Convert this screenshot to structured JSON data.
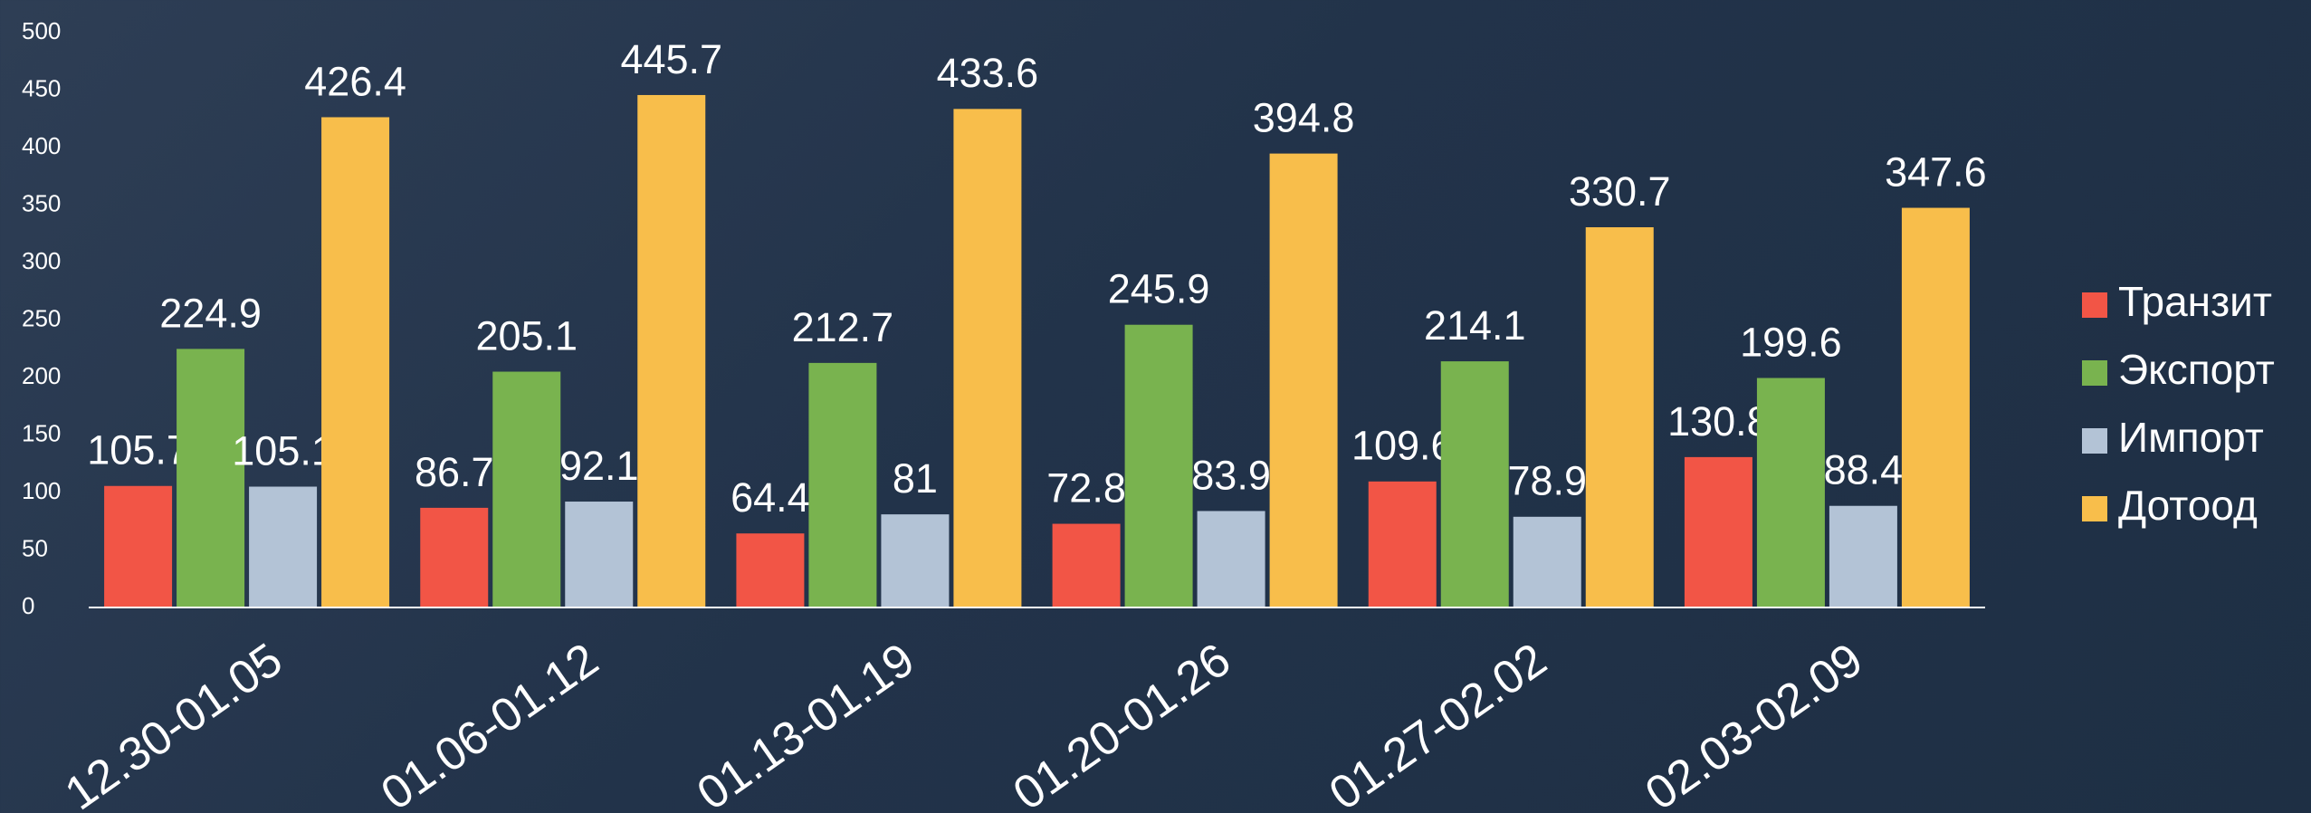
{
  "chart_data": {
    "type": "bar",
    "categories": [
      "12.30-01.05",
      "01.06-01.12",
      "01.13-01.19",
      "01.20-01.26",
      "01.27-02.02",
      "02.03-02.09"
    ],
    "series": [
      {
        "name": "Транзит",
        "color": "#f25546",
        "values": [
          105.7,
          86.7,
          64.4,
          72.8,
          109.6,
          130.8
        ]
      },
      {
        "name": "Экспорт",
        "color": "#79b34f",
        "values": [
          224.9,
          205.1,
          212.7,
          245.9,
          214.1,
          199.6
        ]
      },
      {
        "name": "Импорт",
        "color": "#b3c3d6",
        "values": [
          105.1,
          92.1,
          81,
          83.9,
          78.9,
          88.4
        ]
      },
      {
        "name": "Дотоод",
        "color": "#f8be4b",
        "values": [
          426.4,
          445.7,
          433.6,
          394.8,
          330.7,
          347.6
        ]
      }
    ],
    "ylim": [
      0,
      500
    ],
    "yticks": [
      0,
      50,
      100,
      150,
      200,
      250,
      300,
      350,
      400,
      450,
      500
    ],
    "grid": false,
    "legend": "right"
  }
}
